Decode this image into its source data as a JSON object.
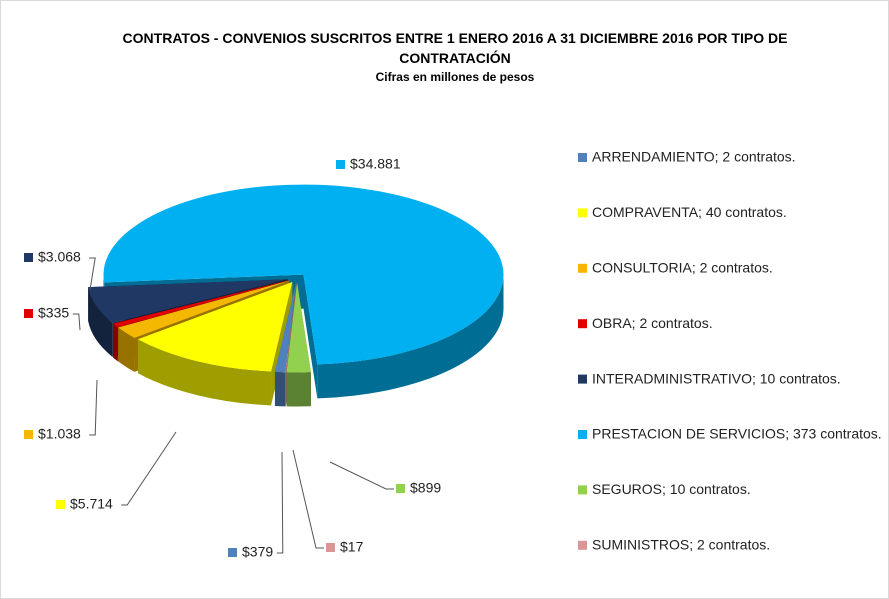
{
  "chart_data": {
    "type": "pie3d",
    "title": "CONTRATOS - CONVENIOS SUSCRITOS ENTRE 1 ENERO 2016 A 31 DICIEMBRE 2016 POR TIPO DE CONTRATACIÓN",
    "subtitle": "Cifras en millones de pesos",
    "categories": [
      "ARRENDAMIENTO; 2 contratos.",
      "COMPRAVENTA; 40 contratos.",
      "CONSULTORIA; 2 contratos.",
      "OBRA; 2 contratos.",
      "INTERADMINISTRATIVO; 10 contratos.",
      "PRESTACION DE SERVICIOS; 373 contratos.",
      "SEGUROS; 10 contratos.",
      "SUMINISTROS; 2 contratos."
    ],
    "values": [
      379,
      5714,
      1038,
      335,
      3068,
      34881,
      899,
      17
    ],
    "value_labels": [
      "$379",
      "$5.714",
      "$1.038",
      "$335",
      "$3.068",
      "$34.881",
      "$899",
      "$17"
    ],
    "colors": [
      "#4f81bd",
      "#ffff00",
      "#f5b800",
      "#e00000",
      "#1f3864",
      "#00b0f0",
      "#92d050",
      "#d99694"
    ],
    "legend": "right"
  }
}
